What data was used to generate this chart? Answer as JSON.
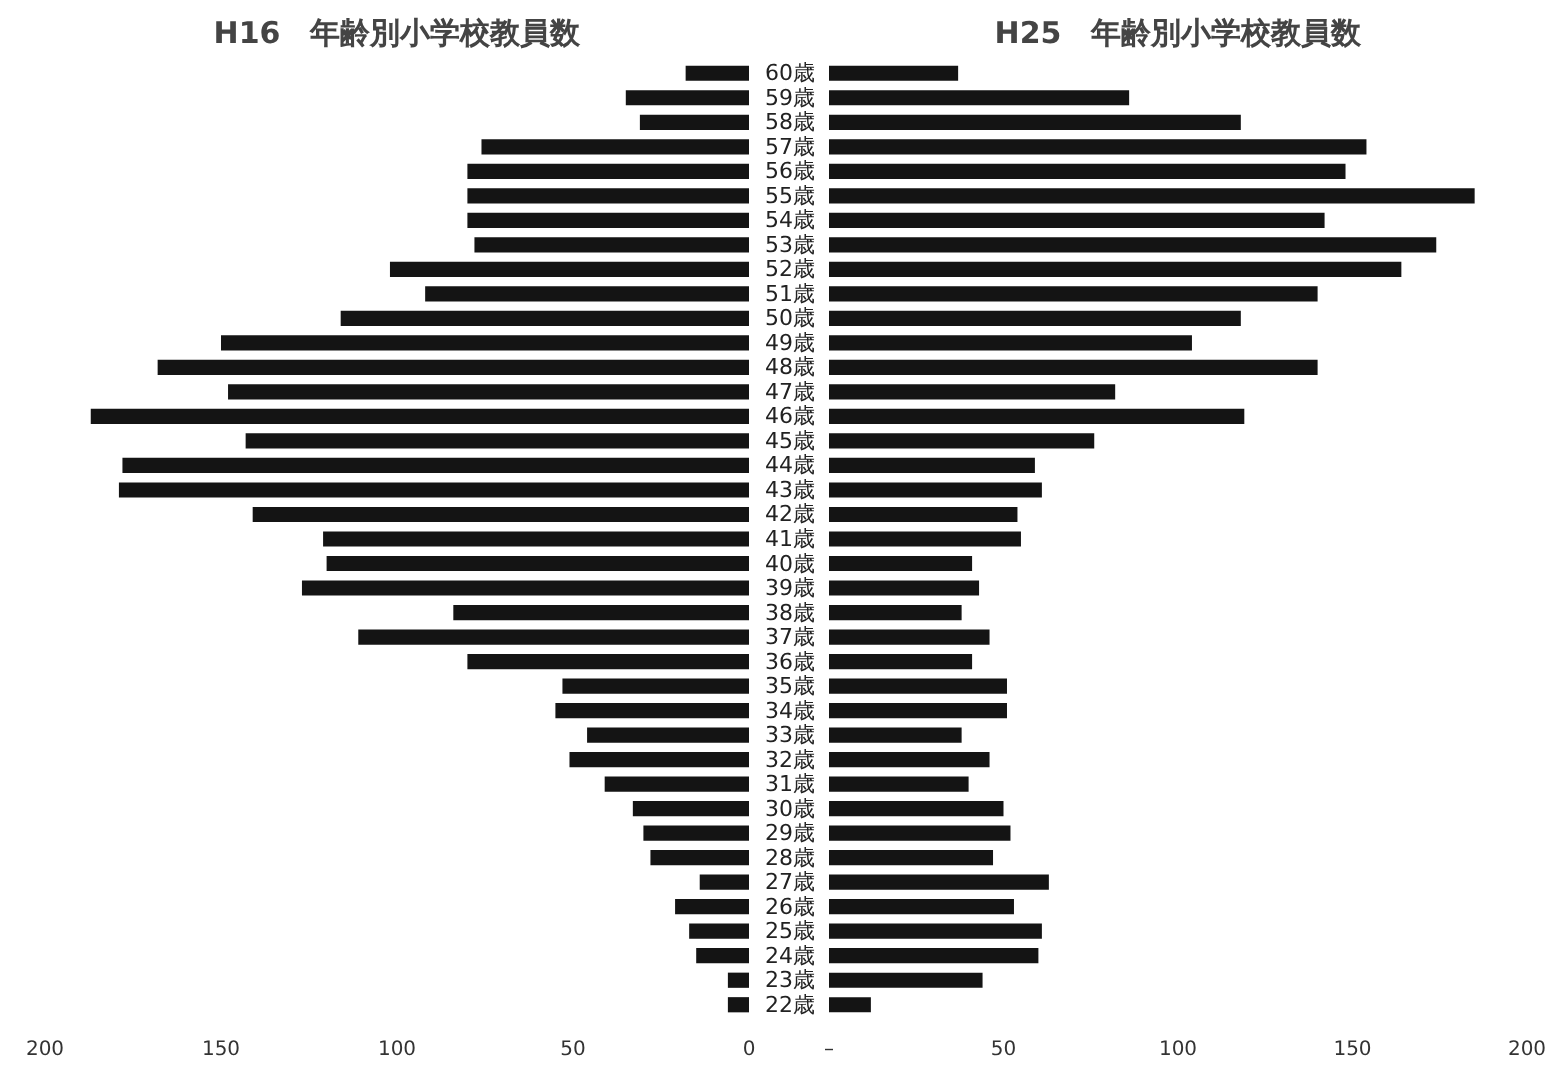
{
  "chart_data": [
    {
      "type": "bar",
      "orientation": "horizontal",
      "title": "H16　年齢別小学校教員数",
      "color": "#141414",
      "categories": [
        "60歳",
        "59歳",
        "58歳",
        "57歳",
        "56歳",
        "55歳",
        "54歳",
        "53歳",
        "52歳",
        "51歳",
        "50歳",
        "49歳",
        "48歳",
        "47歳",
        "46歳",
        "45歳",
        "44歳",
        "43歳",
        "42歳",
        "41歳",
        "40歳",
        "39歳",
        "38歳",
        "37歳",
        "36歳",
        "35歳",
        "34歳",
        "33歳",
        "32歳",
        "31歳",
        "30歳",
        "29歳",
        "28歳",
        "27歳",
        "26歳",
        "25歳",
        "24歳",
        "23歳",
        "22歳"
      ],
      "values": [
        18,
        35,
        31,
        76,
        80,
        80,
        80,
        78,
        102,
        92,
        116,
        150,
        168,
        148,
        187,
        143,
        178,
        179,
        141,
        121,
        120,
        127,
        84,
        111,
        80,
        53,
        55,
        46,
        51,
        41,
        33,
        30,
        28,
        14,
        21,
        17,
        15,
        6,
        6
      ],
      "xlim": [
        200,
        0
      ],
      "xticks": [
        0,
        50,
        100,
        150,
        200
      ],
      "grid": false
    },
    {
      "type": "bar",
      "orientation": "horizontal",
      "title": "H25　年齢別小学校教員数",
      "color": "#141414",
      "categories": [
        "60歳",
        "59歳",
        "58歳",
        "57歳",
        "56歳",
        "55歳",
        "54歳",
        "53歳",
        "52歳",
        "51歳",
        "50歳",
        "49歳",
        "48歳",
        "47歳",
        "46歳",
        "45歳",
        "44歳",
        "43歳",
        "42歳",
        "41歳",
        "40歳",
        "39歳",
        "38歳",
        "37歳",
        "36歳",
        "35歳",
        "34歳",
        "33歳",
        "32歳",
        "31歳",
        "30歳",
        "29歳",
        "28歳",
        "27歳",
        "26歳",
        "25歳",
        "24歳",
        "23歳",
        "22歳"
      ],
      "values": [
        37,
        86,
        118,
        154,
        148,
        185,
        142,
        174,
        164,
        140,
        118,
        104,
        140,
        82,
        119,
        76,
        59,
        61,
        54,
        55,
        41,
        43,
        38,
        46,
        41,
        51,
        51,
        38,
        46,
        40,
        50,
        52,
        47,
        63,
        53,
        61,
        60,
        44,
        12
      ],
      "xlim": [
        0,
        200
      ],
      "xticks": [
        {
          "value": 0,
          "label": "–"
        },
        50,
        100,
        150,
        200
      ],
      "grid": false,
      "tick_labels": "x"
    }
  ]
}
